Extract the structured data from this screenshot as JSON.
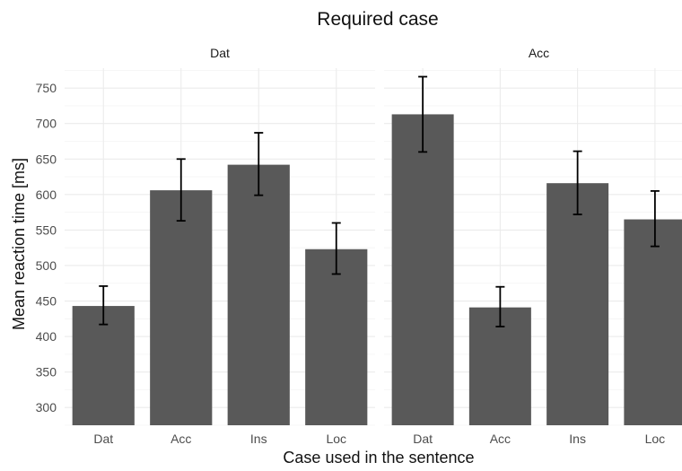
{
  "chart_data": {
    "type": "bar",
    "title": "Required case",
    "xlabel": "Case used in the sentence",
    "ylabel": "Mean reaction time [ms]",
    "ylim": [
      275,
      778
    ],
    "yticks": [
      300,
      350,
      400,
      450,
      500,
      550,
      600,
      650,
      700,
      750
    ],
    "grid": true,
    "bar_color": "#595959",
    "panels": [
      {
        "name": "Dat",
        "categories": [
          "Dat",
          "Acc",
          "Ins",
          "Loc"
        ],
        "values": [
          443,
          606,
          642,
          523
        ],
        "error_low": [
          417,
          563,
          599,
          488
        ],
        "error_high": [
          471,
          650,
          687,
          560
        ]
      },
      {
        "name": "Acc",
        "categories": [
          "Dat",
          "Acc",
          "Ins",
          "Loc"
        ],
        "values": [
          713,
          441,
          616,
          565
        ],
        "error_low": [
          660,
          414,
          572,
          527
        ],
        "error_high": [
          766,
          470,
          661,
          605
        ]
      }
    ]
  }
}
